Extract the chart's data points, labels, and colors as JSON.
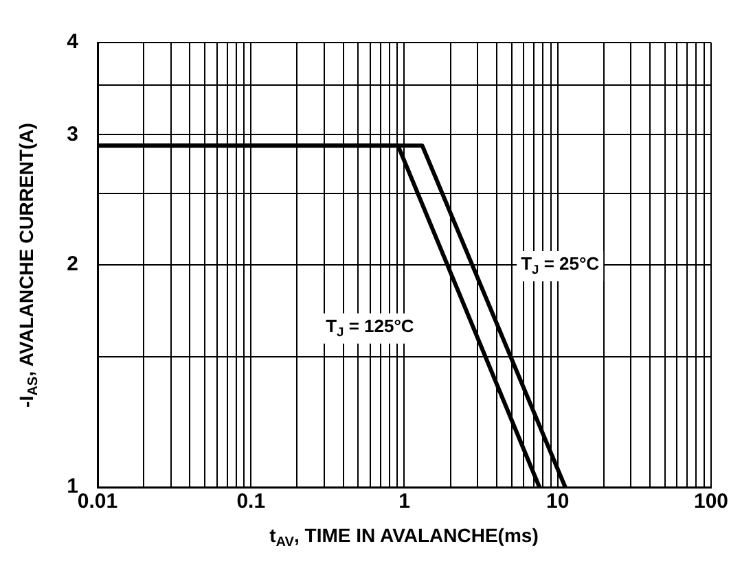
{
  "chart_data": {
    "type": "line",
    "xlabel": "t$_{AV}$, TIME IN AVALANCHE(ms)",
    "ylabel": "-I$_{AS}$, AVALANCHE CURRENT(A)",
    "log": "xy",
    "grid": true,
    "legend": false,
    "marker": "none",
    "line_style": "solid",
    "xlim": [
      0.01,
      100
    ],
    "ylim": [
      1,
      4
    ],
    "xticks": [
      0.01,
      {
        "value": 0.02,
        "label": null
      },
      {
        "value": 0.03,
        "label": null
      },
      {
        "value": 0.04,
        "label": null
      },
      {
        "value": 0.05,
        "label": null
      },
      {
        "value": 0.06,
        "label": null
      },
      {
        "value": 0.07,
        "label": null
      },
      {
        "value": 0.08,
        "label": null
      },
      {
        "value": 0.09,
        "label": null
      },
      0.1,
      {
        "value": 0.2,
        "label": null
      },
      {
        "value": 0.3,
        "label": null
      },
      {
        "value": 0.4,
        "label": null
      },
      {
        "value": 0.5,
        "label": null
      },
      {
        "value": 0.6,
        "label": null
      },
      {
        "value": 0.7,
        "label": null
      },
      {
        "value": 0.8,
        "label": null
      },
      {
        "value": 0.9,
        "label": null
      },
      1,
      {
        "value": 2,
        "label": null
      },
      {
        "value": 3,
        "label": null
      },
      {
        "value": 4,
        "label": null
      },
      {
        "value": 5,
        "label": null
      },
      {
        "value": 6,
        "label": null
      },
      {
        "value": 7,
        "label": null
      },
      {
        "value": 8,
        "label": null
      },
      {
        "value": 9,
        "label": null
      },
      10,
      {
        "value": 20,
        "label": null
      },
      {
        "value": 30,
        "label": null
      },
      {
        "value": 40,
        "label": null
      },
      {
        "value": 50,
        "label": null
      },
      {
        "value": 60,
        "label": null
      },
      {
        "value": 70,
        "label": null
      },
      {
        "value": 80,
        "label": null
      },
      {
        "value": 90,
        "label": null
      },
      100
    ],
    "yticks": [
      1,
      {
        "value": 1.5,
        "label": null
      },
      2,
      {
        "value": 2.5,
        "label": null
      },
      3,
      {
        "value": 3.5,
        "label": null
      },
      4
    ],
    "series": [
      {
        "color": "#000000",
        "x": [
          0.01,
          0.91,
          7.6
        ],
        "values": [
          2.9,
          2.9,
          1
        ]
      },
      {
        "color": "#000000",
        "x": [
          0.01,
          1.31,
          11.2
        ],
        "values": [
          2.9,
          2.9,
          1
        ]
      }
    ],
    "annotations": [
      "T$_{J}$ = 125°C",
      "T$_{J}$ = 25°C"
    ]
  }
}
